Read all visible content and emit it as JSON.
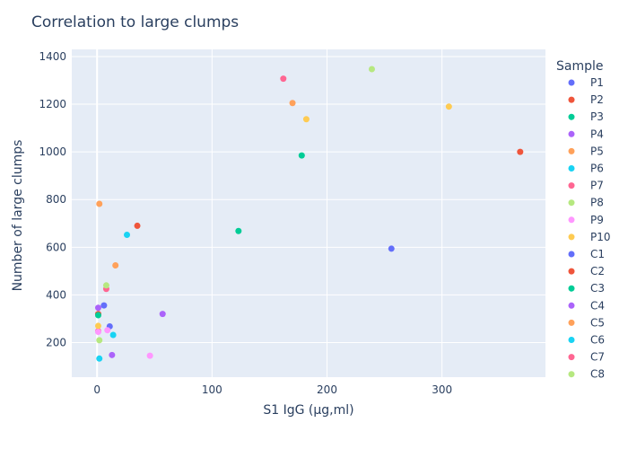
{
  "chart_data": {
    "type": "scatter",
    "title": "Correlation to large clumps",
    "xlabel": "S1 IgG (μg,ml)",
    "ylabel": "Number of large clumps",
    "xlim": [
      -22,
      390
    ],
    "ylim": [
      55,
      1430
    ],
    "xticks": [
      0,
      100,
      200,
      300
    ],
    "yticks": [
      200,
      400,
      600,
      800,
      1000,
      1200,
      1400
    ],
    "grid": true,
    "legend_title": "Sample",
    "legend_placement": "right",
    "series": [
      {
        "name": "P1",
        "color": "#636efa",
        "points": [
          [
            256,
            594
          ]
        ]
      },
      {
        "name": "P2",
        "color": "#EF553B",
        "points": [
          [
            368,
            1000
          ]
        ]
      },
      {
        "name": "P3",
        "color": "#00cc96",
        "points": [
          [
            178,
            985
          ]
        ]
      },
      {
        "name": "P4",
        "color": "#ab63fa",
        "points": [
          [
            57,
            320
          ]
        ]
      },
      {
        "name": "P5",
        "color": "#FFA15A",
        "points": [
          [
            170,
            1205
          ]
        ]
      },
      {
        "name": "P6",
        "color": "#19d3f3",
        "points": [
          [
            26,
            652
          ]
        ]
      },
      {
        "name": "P7",
        "color": "#FF6692",
        "points": [
          [
            162,
            1307
          ]
        ]
      },
      {
        "name": "P8",
        "color": "#B6E880",
        "points": [
          [
            239,
            1347
          ]
        ]
      },
      {
        "name": "P9",
        "color": "#FF97FF",
        "points": [
          [
            46,
            145
          ]
        ]
      },
      {
        "name": "P10",
        "color": "#FECB52",
        "points": [
          [
            182,
            1137
          ],
          [
            306,
            1190
          ]
        ]
      },
      {
        "name": "C1",
        "color": "#636efa",
        "points": [
          [
            6,
            356
          ],
          [
            11,
            268
          ]
        ]
      },
      {
        "name": "C2",
        "color": "#EF553B",
        "points": [
          [
            35,
            690
          ],
          [
            1,
            320
          ]
        ]
      },
      {
        "name": "C3",
        "color": "#00cc96",
        "points": [
          [
            123,
            668
          ],
          [
            1,
            315
          ]
        ]
      },
      {
        "name": "C4",
        "color": "#ab63fa",
        "points": [
          [
            1,
            346
          ],
          [
            13,
            148
          ]
        ]
      },
      {
        "name": "C5",
        "color": "#FFA15A",
        "points": [
          [
            2,
            782
          ],
          [
            16,
            524
          ]
        ]
      },
      {
        "name": "C6",
        "color": "#19d3f3",
        "points": [
          [
            14,
            232
          ],
          [
            2,
            133
          ]
        ]
      },
      {
        "name": "C7",
        "color": "#FF6692",
        "points": [
          [
            8,
            425
          ],
          [
            1,
            248
          ]
        ]
      },
      {
        "name": "C8",
        "color": "#B6E880",
        "points": [
          [
            8,
            440
          ],
          [
            2,
            210
          ]
        ]
      },
      {
        "name": "",
        "color": "#FF97FF",
        "points": [
          [
            9,
            252
          ],
          [
            1,
            245
          ]
        ]
      },
      {
        "name": "",
        "color": "#FECB52",
        "points": [
          [
            1,
            270
          ]
        ]
      }
    ]
  }
}
